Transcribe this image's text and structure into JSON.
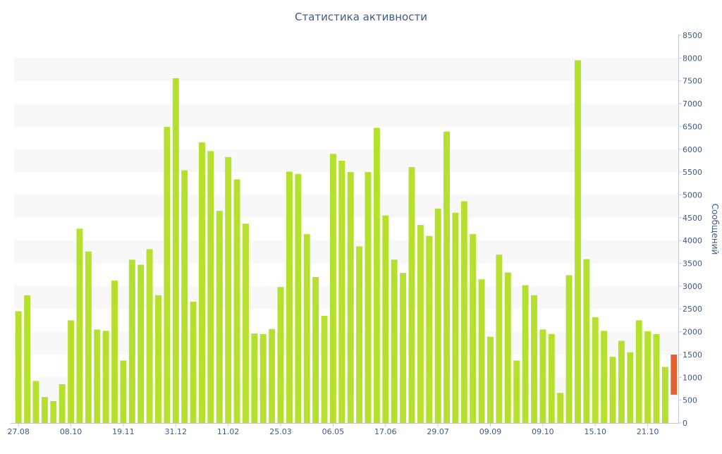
{
  "chart_data": {
    "type": "bar",
    "title": "Статистика активности",
    "xlabel": "",
    "ylabel": "Сообщений",
    "ylim": [
      0,
      8500
    ],
    "y_ticks": [
      0,
      500,
      1000,
      1500,
      2000,
      2500,
      3000,
      3500,
      4000,
      4500,
      5000,
      5500,
      6000,
      6500,
      7000,
      7500,
      8000,
      8500
    ],
    "y_axis_position": "right",
    "x_tick_labels": [
      {
        "index": 0,
        "label": "27.08"
      },
      {
        "index": 6,
        "label": "08.10"
      },
      {
        "index": 12,
        "label": "19.11"
      },
      {
        "index": 18,
        "label": "31.12"
      },
      {
        "index": 24,
        "label": "11.02"
      },
      {
        "index": 30,
        "label": "25.03"
      },
      {
        "index": 36,
        "label": "06.05"
      },
      {
        "index": 42,
        "label": "17.06"
      },
      {
        "index": 48,
        "label": "29.07"
      },
      {
        "index": 54,
        "label": "09.09"
      },
      {
        "index": 60,
        "label": "09.10"
      },
      {
        "index": 66,
        "label": "15.10"
      },
      {
        "index": 72,
        "label": "21.10"
      }
    ],
    "values": [
      2450,
      2800,
      920,
      570,
      480,
      850,
      2250,
      4260,
      3760,
      2050,
      2020,
      3120,
      1370,
      3580,
      3470,
      3810,
      2800,
      6490,
      7560,
      5540,
      2660,
      6150,
      5960,
      4650,
      5830,
      5340,
      4370,
      1960,
      1950,
      2060,
      2980,
      5510,
      5460,
      4140,
      3200,
      2350,
      5900,
      5750,
      5500,
      3870,
      5500,
      6470,
      4550,
      3580,
      3290,
      5610,
      4340,
      4100,
      4700,
      6390,
      4610,
      4860,
      4140,
      3150,
      1890,
      3690,
      3300,
      1370,
      3020,
      2800,
      2050,
      1950,
      660,
      3240,
      7950,
      3590,
      2320,
      2020,
      1450,
      1800,
      1550,
      2250,
      2010,
      1950,
      1230
    ],
    "last_bar": {
      "from": 620,
      "to": 1500
    },
    "colors": {
      "bar": "#b5e02e",
      "last_bar": "#e3622e",
      "band": "#f8f8f8",
      "axis": "#c0c8d8",
      "text": "#3e5a8c"
    },
    "grid": "alternating-bands",
    "legend": "none"
  }
}
